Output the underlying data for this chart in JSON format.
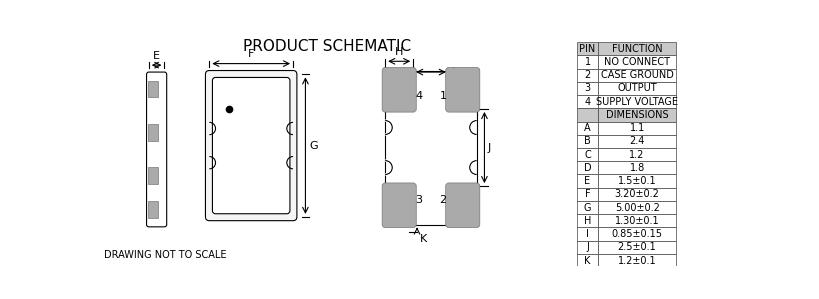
{
  "title": "PRODUCT SCHEMATIC",
  "footer": "DRAWING NOT TO SCALE",
  "table_data": {
    "pin_rows": [
      [
        "PIN",
        "FUNCTION"
      ],
      [
        "1",
        "NO CONNECT"
      ],
      [
        "2",
        "CASE GROUND"
      ],
      [
        "3",
        "OUTPUT"
      ],
      [
        "4",
        "SUPPLY VOLTAGE"
      ]
    ],
    "dim_rows": [
      [
        "A",
        "1.1"
      ],
      [
        "B",
        "2.4"
      ],
      [
        "C",
        "1.2"
      ],
      [
        "D",
        "1.8"
      ],
      [
        "E",
        "1.5±0.1"
      ],
      [
        "F",
        "3.20±0.2"
      ],
      [
        "G",
        "5.00±0.2"
      ],
      [
        "H",
        "1.30±0.1"
      ],
      [
        "I",
        "0.85±0.15"
      ],
      [
        "J",
        "2.5±0.1"
      ],
      [
        "K",
        "1.2±0.1"
      ]
    ]
  }
}
